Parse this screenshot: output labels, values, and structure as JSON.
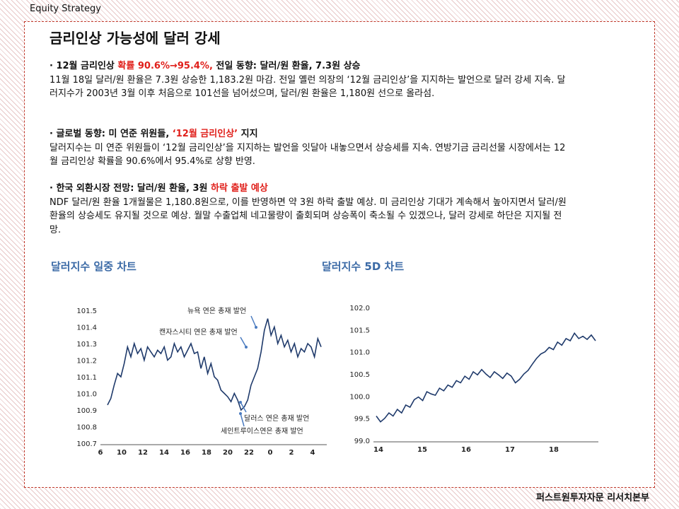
{
  "header": {
    "label": "Equity Strategy"
  },
  "footer": {
    "label": "퍼스트원투자자문 리서치본부"
  },
  "title": "금리인상 가능성에 달러 강세",
  "sections": [
    {
      "heading_a": "· 12월 금리인상 ",
      "heading_red": "확률 90.6%→95.4%,",
      "heading_b": " 전일 동향: 달러/원 환율, 7.3원 상승",
      "body": " 11월 18일 달러/원 환율은 7.3원 상승한 1,183.2원 마감. 전일 옐런 의장의 ‘12월 금리인상’을 지지하는 발언으로 달러 강세 지속. 달러지수가 2003년 3월 이후 처음으로 101선을 넘어섰으며, 달러/원 환율은 1,180원 선으로 올라섬."
    },
    {
      "heading_a": "· 글로벌 동향: 미 연준 위원들, ",
      "heading_red": "‘12월 금리인상’",
      "heading_b": " 지지",
      "body": " 달러지수는 미 연준 위원들이 ‘12월 금리인상’을 지지하는 발언을 잇달아 내놓으면서 상승세를 지속. 연방기금 금리선물 시장에서는 12월 금리인상 확률을 90.6%에서 95.4%로 상향 반영."
    },
    {
      "heading_a": "· 한국 외환시장 전망: 달러/원 환율, 3원 ",
      "heading_red": "하락 출발 예상",
      "heading_b": "",
      "body": " NDF 달러/원 환율 1개월물은 1,180.8원으로, 이를 반영하면 약 3원 하락 출발 예상. 미 금리인상 기대가 계속해서 높아지면서 달러/원 환율의 상승세도 유지될 것으로 예상. 월말 수출업체 네고물량이 출회되며 상승폭이 축소될 수 있겠으나, 달러 강세로 하단은 지지될 전망."
    }
  ],
  "chart_data": [
    {
      "type": "line",
      "title": "달러지수 일중 차트",
      "x_ticks": [
        "6",
        "10",
        "12",
        "14",
        "16",
        "18",
        "20",
        "22",
        "0",
        "2",
        "4"
      ],
      "y_ticks": [
        "101.5",
        "101.4",
        "101.3",
        "101.2",
        "101.1",
        "101.0",
        "100.9",
        "100.8",
        "100.7"
      ],
      "ylim": [
        100.7,
        101.5
      ],
      "line_color": "#1f3a6b",
      "series": [
        {
          "values": [
            100.93,
            100.97,
            101.05,
            101.12,
            101.1,
            101.18,
            101.28,
            101.22,
            101.3,
            101.24,
            101.27,
            101.2,
            101.28,
            101.25,
            101.22,
            101.26,
            101.24,
            101.28,
            101.2,
            101.22,
            101.3,
            101.25,
            101.28,
            101.22,
            101.26,
            101.3,
            101.24,
            101.25,
            101.15,
            101.22,
            101.12,
            101.18,
            101.1,
            101.08,
            101.02,
            101.0,
            100.98,
            100.95,
            101.0,
            100.96,
            100.9,
            100.92,
            100.96,
            101.05,
            101.1,
            101.15,
            101.25,
            101.38,
            101.45,
            101.35,
            101.4,
            101.3,
            101.35,
            101.28,
            101.32,
            101.25,
            101.3,
            101.22,
            101.27,
            101.25,
            101.3,
            101.28,
            101.22,
            101.33,
            101.28
          ]
        }
      ],
      "annotations": [
        "뉴욕 연은 총재 발언",
        "캔자스시티 연은 총재 발언",
        "달러스 연은 총재 발언",
        "세인트루이스연은 총재 발언"
      ]
    },
    {
      "type": "line",
      "title": "달러지수 5D 차트",
      "x_ticks": [
        "14",
        "15",
        "16",
        "17",
        "18"
      ],
      "y_ticks": [
        "102.0",
        "101.5",
        "101.0",
        "100.5",
        "100.0",
        "99.5",
        "99.0"
      ],
      "ylim": [
        99.0,
        102.0
      ],
      "line_color": "#1f3a6b",
      "series": [
        {
          "values": [
            99.55,
            99.42,
            99.5,
            99.62,
            99.55,
            99.7,
            99.62,
            99.8,
            99.75,
            99.92,
            99.98,
            99.9,
            100.1,
            100.05,
            100.02,
            100.18,
            100.12,
            100.25,
            100.2,
            100.35,
            100.3,
            100.45,
            100.38,
            100.55,
            100.48,
            100.6,
            100.5,
            100.42,
            100.55,
            100.48,
            100.4,
            100.52,
            100.45,
            100.3,
            100.38,
            100.5,
            100.58,
            100.72,
            100.85,
            100.95,
            101.0,
            101.1,
            101.05,
            101.22,
            101.15,
            101.3,
            101.25,
            101.42,
            101.3,
            101.35,
            101.28,
            101.38,
            101.25
          ]
        }
      ]
    }
  ]
}
